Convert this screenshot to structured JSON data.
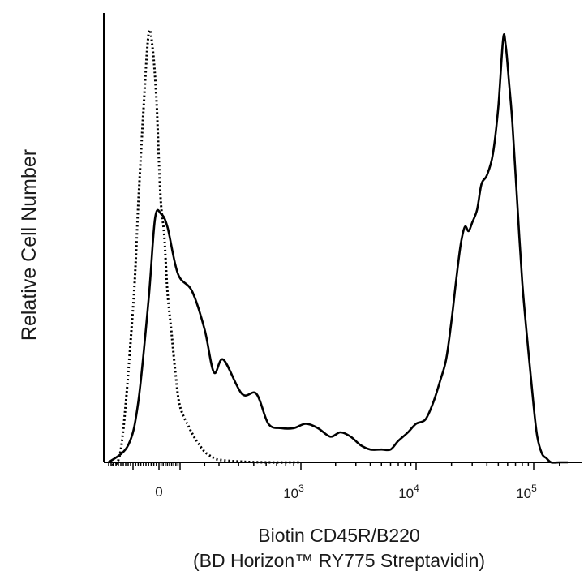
{
  "chart_data": {
    "type": "line",
    "title": "",
    "xlabel": "Biotin CD45R/B220",
    "xlabel_line2": "(BD Horizon™ RY775 Streptavidin)",
    "ylabel": "Relative Cell Number",
    "x_scale": "biexponential",
    "xlim": [
      -200,
      250000
    ],
    "ylim": [
      0,
      1
    ],
    "grid": false,
    "legend": "none",
    "x_tick_labels": [
      {
        "value": 0,
        "label": "0"
      },
      {
        "value": 1000,
        "base": "10",
        "exp": "3"
      },
      {
        "value": 10000,
        "base": "10",
        "exp": "4"
      },
      {
        "value": 100000,
        "base": "10",
        "exp": "5"
      }
    ],
    "series": [
      {
        "style": "solid",
        "color": "#000000",
        "x": [
          -200,
          -120,
          -80,
          -40,
          -15,
          10,
          40,
          90,
          140,
          200,
          260,
          320,
          420,
          520,
          620,
          750,
          900,
          1100,
          1400,
          1800,
          2200,
          2700,
          3300,
          4000,
          5000,
          6000,
          7000,
          8500,
          10000,
          12000,
          14000,
          16000,
          18000,
          20000,
          22000,
          24000,
          26000,
          28000,
          30000,
          33000,
          36000,
          40000,
          45000,
          50000,
          55000,
          58000,
          62000,
          66000,
          72000,
          80000,
          90000,
          100000,
          110000,
          125000,
          140000,
          160000,
          200000,
          250000
        ],
        "y": [
          0.0,
          0.04,
          0.14,
          0.38,
          0.57,
          0.58,
          0.55,
          0.44,
          0.4,
          0.31,
          0.21,
          0.24,
          0.16,
          0.16,
          0.09,
          0.08,
          0.08,
          0.09,
          0.08,
          0.06,
          0.07,
          0.06,
          0.04,
          0.03,
          0.03,
          0.03,
          0.05,
          0.07,
          0.09,
          0.1,
          0.14,
          0.19,
          0.24,
          0.33,
          0.43,
          0.51,
          0.55,
          0.54,
          0.56,
          0.59,
          0.65,
          0.67,
          0.72,
          0.83,
          0.99,
          0.97,
          0.88,
          0.79,
          0.62,
          0.42,
          0.26,
          0.13,
          0.06,
          0.02,
          0.01,
          0.0,
          0.0,
          0.0
        ]
      },
      {
        "style": "dotted",
        "color": "#000000",
        "x": [
          -200,
          -150,
          -100,
          -80,
          -60,
          -40,
          -25,
          -10,
          0,
          10,
          25,
          40,
          60,
          80,
          100,
          130,
          160,
          200,
          250,
          300,
          400,
          600,
          1000
        ],
        "y": [
          0.0,
          0.03,
          0.36,
          0.6,
          0.82,
          1.0,
          0.97,
          0.85,
          0.7,
          0.6,
          0.53,
          0.4,
          0.3,
          0.2,
          0.13,
          0.08,
          0.05,
          0.025,
          0.012,
          0.006,
          0.002,
          0.0,
          0.0
        ]
      }
    ]
  }
}
